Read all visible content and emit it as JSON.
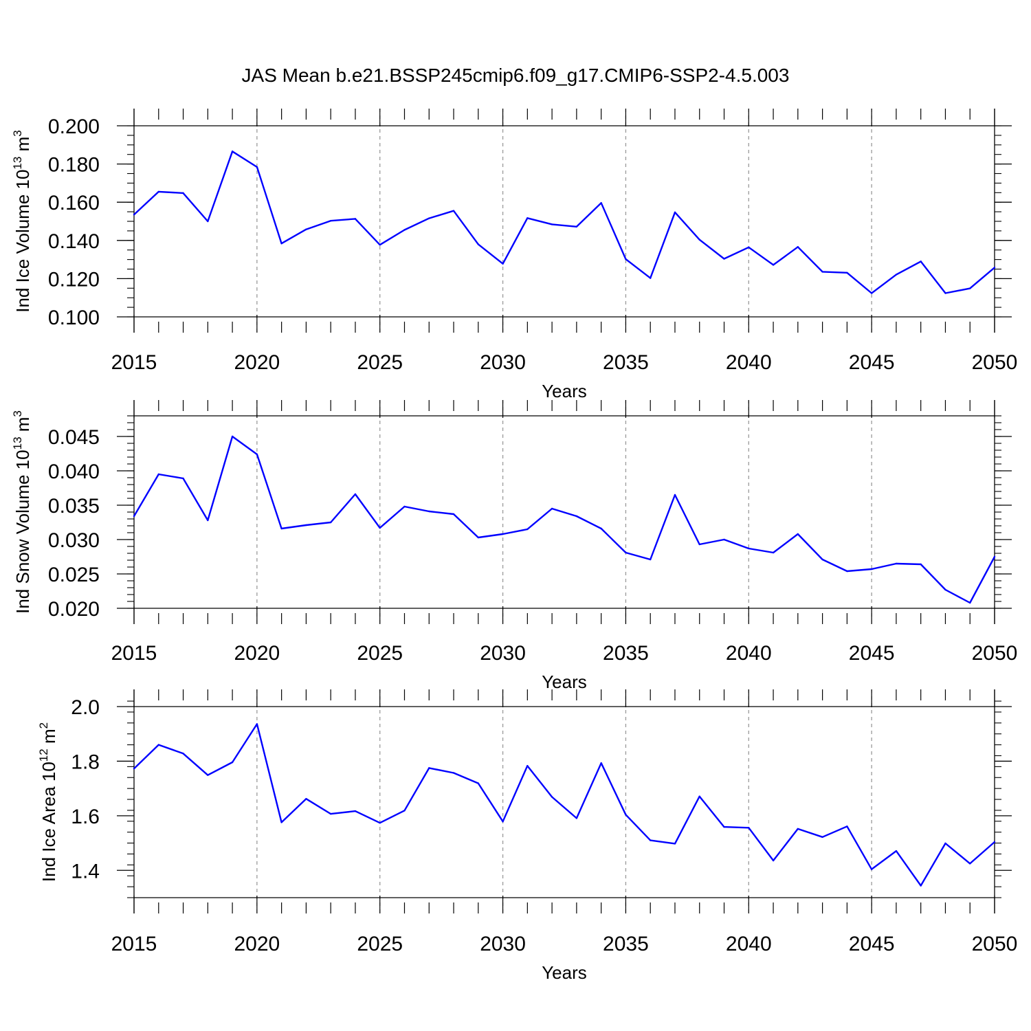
{
  "title": "JAS Mean b.e21.BSSP245cmip6.f09_g17.CMIP6-SSP2-4.5.003",
  "line_color": "#0000ff",
  "chart_data": [
    {
      "type": "line",
      "ylabel_main": "Ind Ice Volume 10",
      "ylabel_exp1": "13",
      "ylabel_unit": " m",
      "ylabel_exp2": "3",
      "xlabel": "Years",
      "xlim": [
        2015,
        2050
      ],
      "ylim": [
        0.1,
        0.2
      ],
      "x_ticks": [
        2015,
        2020,
        2025,
        2030,
        2035,
        2040,
        2045,
        2050
      ],
      "y_ticks": [
        0.1,
        0.12,
        0.14,
        0.16,
        0.18,
        0.2
      ],
      "y_tick_labels": [
        "0.100",
        "0.120",
        "0.140",
        "0.160",
        "0.180",
        "0.200"
      ],
      "y_minor_step": 0.005,
      "x": [
        2015,
        2016,
        2017,
        2018,
        2019,
        2020,
        2021,
        2022,
        2023,
        2024,
        2025,
        2026,
        2027,
        2028,
        2029,
        2030,
        2031,
        2032,
        2033,
        2034,
        2035,
        2036,
        2037,
        2038,
        2039,
        2040,
        2041,
        2042,
        2043,
        2044,
        2045,
        2046,
        2047,
        2048,
        2049,
        2050
      ],
      "values": [
        0.1535,
        0.1655,
        0.1648,
        0.15,
        0.1866,
        0.1784,
        0.1384,
        0.1458,
        0.1503,
        0.1513,
        0.1377,
        0.1455,
        0.1516,
        0.1555,
        0.138,
        0.1278,
        0.1517,
        0.1484,
        0.1472,
        0.1596,
        0.1302,
        0.1203,
        0.1547,
        0.1404,
        0.1304,
        0.1364,
        0.1272,
        0.1366,
        0.1236,
        0.1231,
        0.1124,
        0.1221,
        0.129,
        0.1124,
        0.1149,
        0.1258
      ]
    },
    {
      "type": "line",
      "ylabel_main": "Ind Snow Volume 10",
      "ylabel_exp1": "13",
      "ylabel_unit": " m",
      "ylabel_exp2": "3",
      "xlabel": "Years",
      "xlim": [
        2015,
        2050
      ],
      "ylim": [
        0.02,
        0.048
      ],
      "x_ticks": [
        2015,
        2020,
        2025,
        2030,
        2035,
        2040,
        2045,
        2050
      ],
      "y_ticks": [
        0.02,
        0.025,
        0.03,
        0.035,
        0.04,
        0.045
      ],
      "y_tick_labels": [
        "0.020",
        "0.025",
        "0.030",
        "0.035",
        "0.040",
        "0.045"
      ],
      "y_minor_step": 0.001,
      "x": [
        2015,
        2016,
        2017,
        2018,
        2019,
        2020,
        2021,
        2022,
        2023,
        2024,
        2025,
        2026,
        2027,
        2028,
        2029,
        2030,
        2031,
        2032,
        2033,
        2034,
        2035,
        2036,
        2037,
        2038,
        2039,
        2040,
        2041,
        2042,
        2043,
        2044,
        2045,
        2046,
        2047,
        2048,
        2049,
        2050
      ],
      "values": [
        0.0334,
        0.0395,
        0.0389,
        0.0328,
        0.045,
        0.0424,
        0.0316,
        0.0321,
        0.0325,
        0.0366,
        0.0317,
        0.0348,
        0.0341,
        0.0337,
        0.0303,
        0.0308,
        0.0315,
        0.0345,
        0.0334,
        0.0316,
        0.0281,
        0.0271,
        0.0365,
        0.0293,
        0.03,
        0.0287,
        0.0281,
        0.0308,
        0.0271,
        0.0254,
        0.0257,
        0.0265,
        0.0264,
        0.0227,
        0.0208,
        0.0275
      ]
    },
    {
      "type": "line",
      "ylabel_main": "Ind Ice Area 10",
      "ylabel_exp1": "12",
      "ylabel_unit": " m",
      "ylabel_exp2": "2",
      "xlabel": "Years",
      "xlim": [
        2015,
        2050
      ],
      "ylim": [
        1.3,
        2.0
      ],
      "x_ticks": [
        2015,
        2020,
        2025,
        2030,
        2035,
        2040,
        2045,
        2050
      ],
      "y_ticks": [
        1.4,
        1.6,
        1.8,
        2.0
      ],
      "y_tick_labels": [
        "1.4",
        "1.6",
        "1.8",
        "2.0"
      ],
      "y_minor_step": 0.04,
      "x": [
        2015,
        2016,
        2017,
        2018,
        2019,
        2020,
        2021,
        2022,
        2023,
        2024,
        2025,
        2026,
        2027,
        2028,
        2029,
        2030,
        2031,
        2032,
        2033,
        2034,
        2035,
        2036,
        2037,
        2038,
        2039,
        2040,
        2041,
        2042,
        2043,
        2044,
        2045,
        2046,
        2047,
        2048,
        2049,
        2050
      ],
      "values": [
        1.773,
        1.86,
        1.828,
        1.749,
        1.796,
        1.936,
        1.576,
        1.662,
        1.607,
        1.617,
        1.574,
        1.619,
        1.775,
        1.757,
        1.719,
        1.579,
        1.783,
        1.669,
        1.591,
        1.793,
        1.604,
        1.51,
        1.498,
        1.671,
        1.559,
        1.556,
        1.436,
        1.552,
        1.522,
        1.561,
        1.404,
        1.471,
        1.344,
        1.499,
        1.425,
        1.504
      ]
    }
  ]
}
